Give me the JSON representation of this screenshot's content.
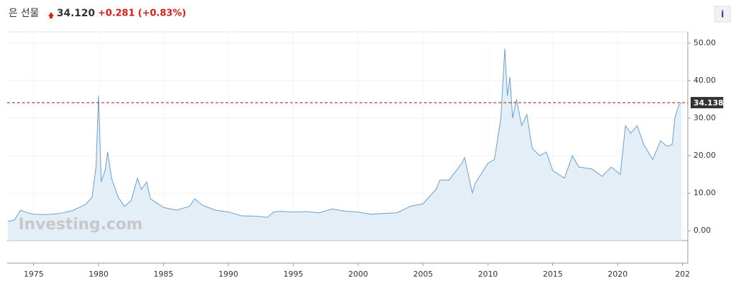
{
  "chart_data": {
    "type": "line",
    "title": "은 선물",
    "price": "34.120",
    "change": "+0.281 (+0.83%)",
    "watermark": "Investing.com",
    "info": "i",
    "color": "#6a9fcf",
    "fill": "#e4eef7",
    "grid": true,
    "annotation": {
      "value": 34.138,
      "label": "34.138"
    },
    "x": [
      1973,
      1973.5,
      1974,
      1974.5,
      1975,
      1976,
      1977,
      1978,
      1979,
      1979.5,
      1979.8,
      1980.0,
      1980.2,
      1980.5,
      1980.7,
      1981,
      1981.5,
      1982,
      1982.5,
      1983,
      1983.3,
      1983.7,
      1984,
      1985,
      1986,
      1987,
      1987.4,
      1988,
      1989,
      1990,
      1991,
      1992,
      1993,
      1993.5,
      1994,
      1995,
      1996,
      1997,
      1998,
      1999,
      2000,
      2001,
      2002,
      2003,
      2004,
      2005,
      2006,
      2006.3,
      2007,
      2008,
      2008.2,
      2008.8,
      2009,
      2010,
      2010.5,
      2011.0,
      2011.3,
      2011.5,
      2011.7,
      2011.9,
      2012.2,
      2012.6,
      2013,
      2013.4,
      2014,
      2014.5,
      2015,
      2015.9,
      2016.5,
      2017,
      2018,
      2018.8,
      2019.5,
      2020.2,
      2020.6,
      2021.0,
      2021.5,
      2022,
      2022.7,
      2023.3,
      2023.8,
      2024.2,
      2024.4,
      2024.7,
      2024.9
    ],
    "series": [
      {
        "name": "은 선물",
        "color": "#6a9fcf",
        "values": [
          2.5,
          2.8,
          5.5,
          4.8,
          4.4,
          4.3,
          4.6,
          5.4,
          7,
          9,
          17,
          36,
          13,
          16,
          21,
          14,
          9,
          6.5,
          8,
          14,
          11,
          13,
          8.5,
          6.2,
          5.5,
          6.5,
          8.5,
          6.8,
          5.5,
          5.0,
          4.0,
          3.9,
          3.6,
          5.0,
          5.2,
          5.0,
          5.1,
          4.8,
          5.8,
          5.2,
          5.0,
          4.4,
          4.6,
          4.8,
          6.5,
          7.2,
          11,
          13.5,
          13.5,
          18,
          19.5,
          10,
          12.5,
          18,
          19,
          30,
          48.5,
          36,
          41,
          30,
          35,
          28,
          31,
          22,
          20,
          21,
          16,
          14,
          20,
          17,
          16.5,
          14.5,
          17,
          15,
          28,
          26,
          28,
          23,
          19,
          24,
          22.5,
          23,
          30,
          33.5,
          34.1
        ]
      }
    ],
    "xlim": [
      1972.95,
      2025.4
    ],
    "ylim": [
      -2.6,
      53
    ],
    "xticks": [
      1975,
      1980,
      1985,
      1990,
      1995,
      2000,
      2005,
      2010,
      2015,
      2020,
      {
        "value": 2025,
        "label": "202"
      }
    ],
    "yticks": [
      {
        "value": 0,
        "label": "0.00"
      },
      {
        "value": 10,
        "label": "10.00"
      },
      {
        "value": 20,
        "label": "20.00"
      },
      {
        "value": 30,
        "label": "30.00"
      },
      {
        "value": 40,
        "label": "40.00"
      },
      {
        "value": 50,
        "label": "50.00"
      }
    ]
  }
}
